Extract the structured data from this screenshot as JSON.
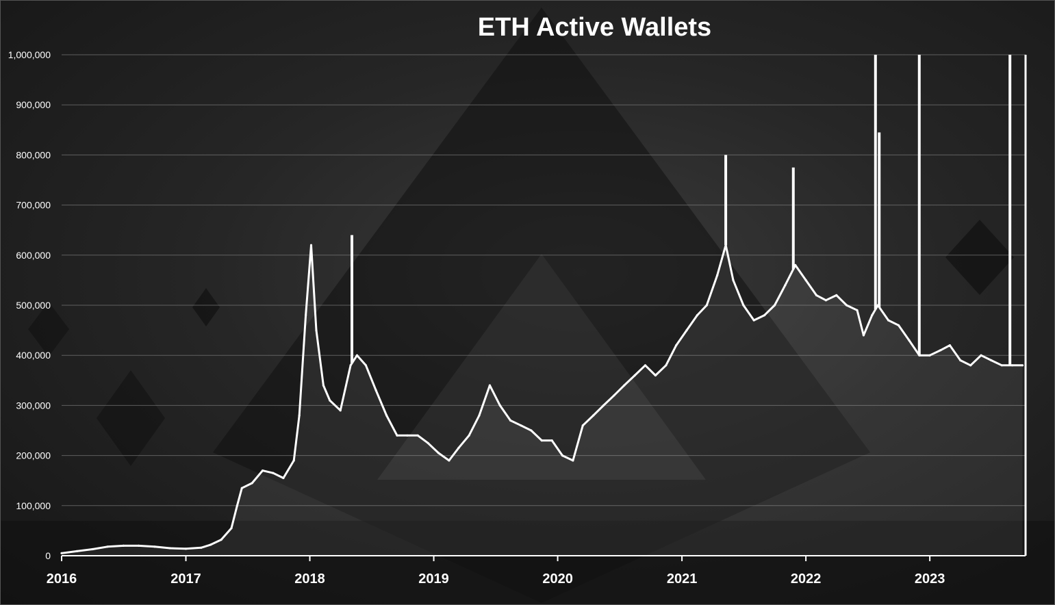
{
  "chart_data": {
    "type": "line",
    "title": "ETH Active Wallets",
    "xlabel": "",
    "ylabel": "",
    "ylim": [
      0,
      1000000
    ],
    "xlim": [
      "2016-01-01",
      "2023-10-10"
    ],
    "grid": true,
    "y_ticks": [
      "0",
      "100,000",
      "200,000",
      "300,000",
      "400,000",
      "500,000",
      "600,000",
      "700,000",
      "800,000",
      "900,000",
      "1,000,000"
    ],
    "x_ticks": [
      "2016",
      "2017",
      "2018",
      "2019",
      "2020",
      "2021",
      "2022",
      "2023"
    ],
    "line_color": "#ffffff",
    "series": [
      {
        "x": [
          "2016-01-01",
          "2016-02-15",
          "2016-04-01",
          "2016-05-15",
          "2016-07-01",
          "2016-08-15",
          "2016-10-01",
          "2016-11-15",
          "2017-01-01",
          "2017-02-15",
          "2017-03-15",
          "2017-04-15",
          "2017-05-15",
          "2017-06-01",
          "2017-06-15",
          "2017-07-15",
          "2017-08-15",
          "2017-09-15",
          "2017-10-15",
          "2017-11-15",
          "2017-12-01",
          "2017-12-20",
          "2018-01-05",
          "2018-01-20",
          "2018-02-10",
          "2018-03-01",
          "2018-04-01",
          "2018-05-01",
          "2018-05-20",
          "2018-06-15",
          "2018-07-15",
          "2018-08-15",
          "2018-09-15",
          "2018-10-15",
          "2018-11-15",
          "2018-12-15",
          "2019-01-15",
          "2019-02-15",
          "2019-03-15",
          "2019-04-15",
          "2019-05-15",
          "2019-06-15",
          "2019-07-15",
          "2019-08-15",
          "2019-09-15",
          "2019-10-15",
          "2019-11-15",
          "2019-12-15",
          "2020-01-15",
          "2020-02-15",
          "2020-03-15",
          "2020-04-15",
          "2020-05-15",
          "2020-06-15",
          "2020-07-15",
          "2020-08-15",
          "2020-09-15",
          "2020-10-15",
          "2020-11-15",
          "2020-12-15",
          "2021-01-15",
          "2021-02-15",
          "2021-03-15",
          "2021-04-15",
          "2021-05-10",
          "2021-06-01",
          "2021-07-01",
          "2021-08-01",
          "2021-09-01",
          "2021-10-01",
          "2021-11-01",
          "2021-12-01",
          "2022-01-01",
          "2022-02-01",
          "2022-03-01",
          "2022-04-01",
          "2022-05-01",
          "2022-06-01",
          "2022-06-20",
          "2022-07-15",
          "2022-08-01",
          "2022-09-01",
          "2022-10-01",
          "2022-11-01",
          "2022-12-01",
          "2023-01-01",
          "2023-02-01",
          "2023-03-01",
          "2023-04-01",
          "2023-05-01",
          "2023-06-01",
          "2023-07-01",
          "2023-08-01",
          "2023-09-01",
          "2023-10-01"
        ],
        "y": [
          5000,
          9000,
          13000,
          18000,
          20000,
          20000,
          18000,
          15000,
          14000,
          16000,
          22000,
          32000,
          55000,
          100000,
          135000,
          145000,
          170000,
          165000,
          155000,
          190000,
          280000,
          480000,
          620000,
          450000,
          340000,
          310000,
          290000,
          380000,
          400000,
          380000,
          330000,
          280000,
          240000,
          240000,
          240000,
          225000,
          205000,
          190000,
          215000,
          240000,
          280000,
          340000,
          300000,
          270000,
          260000,
          250000,
          230000,
          230000,
          200000,
          190000,
          260000,
          280000,
          300000,
          320000,
          340000,
          360000,
          380000,
          360000,
          380000,
          420000,
          450000,
          480000,
          500000,
          560000,
          620000,
          550000,
          500000,
          470000,
          480000,
          500000,
          540000,
          580000,
          550000,
          520000,
          510000,
          520000,
          500000,
          490000,
          440000,
          480000,
          500000,
          470000,
          460000,
          430000,
          400000,
          400000,
          410000,
          420000,
          390000,
          380000,
          400000,
          390000,
          380000,
          380000,
          380000
        ]
      }
    ],
    "spikes": [
      {
        "x": "2018-05-05",
        "y": 640000
      },
      {
        "x": "2021-05-10",
        "y": 800000
      },
      {
        "x": "2021-11-25",
        "y": 775000
      },
      {
        "x": "2022-07-25",
        "y": 1000000
      },
      {
        "x": "2022-08-05",
        "y": 845000
      },
      {
        "x": "2022-12-01",
        "y": 1000000
      },
      {
        "x": "2023-08-25",
        "y": 1000000
      }
    ]
  }
}
